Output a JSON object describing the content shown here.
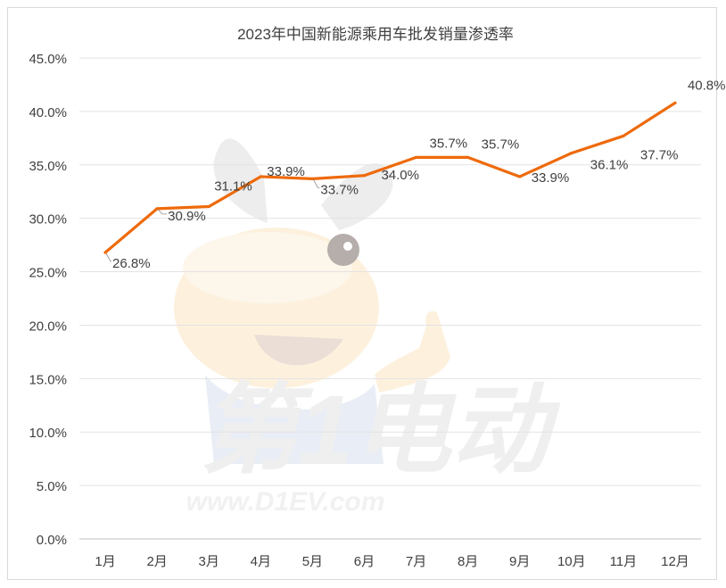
{
  "chart_data": {
    "type": "line",
    "title": "2023年中国新能源乘用车批发销量渗透率",
    "xlabel": "",
    "ylabel": "",
    "categories": [
      "1月",
      "2月",
      "3月",
      "4月",
      "5月",
      "6月",
      "7月",
      "8月",
      "9月",
      "10月",
      "11月",
      "12月"
    ],
    "series": [
      {
        "values": [
          26.8,
          30.9,
          31.1,
          33.9,
          33.7,
          34.0,
          35.7,
          35.7,
          33.9,
          36.1,
          37.7,
          40.8
        ]
      }
    ],
    "data_labels": [
      "26.8%",
      "30.9%",
      "31.1%",
      "33.9%",
      "33.7%",
      "34.0%",
      "35.7%",
      "35.7%",
      "33.9%",
      "36.1%",
      "37.7%",
      "40.8%"
    ],
    "ylim": [
      0,
      45
    ],
    "yticks": [
      0,
      5,
      10,
      15,
      20,
      25,
      30,
      35,
      40,
      45
    ],
    "ytick_labels": [
      "0.0%",
      "5.0%",
      "10.0%",
      "15.0%",
      "20.0%",
      "25.0%",
      "30.0%",
      "35.0%",
      "40.0%",
      "45.0%"
    ],
    "grid": true,
    "legend": "none",
    "line_color": "#ee6a0b"
  },
  "watermark": {
    "brand": "第1电动",
    "url": "www.D1EV.com"
  }
}
